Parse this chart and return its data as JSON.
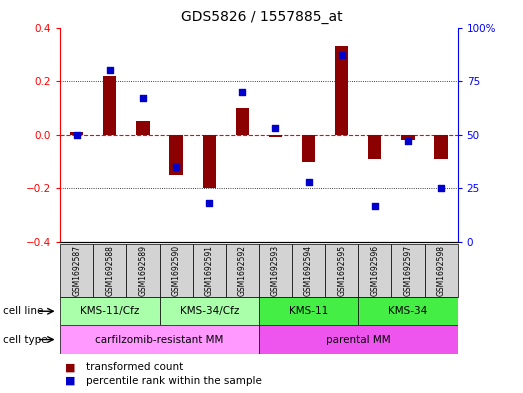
{
  "title": "GDS5826 / 1557885_at",
  "samples": [
    "GSM1692587",
    "GSM1692588",
    "GSM1692589",
    "GSM1692590",
    "GSM1692591",
    "GSM1692592",
    "GSM1692593",
    "GSM1692594",
    "GSM1692595",
    "GSM1692596",
    "GSM1692597",
    "GSM1692598"
  ],
  "transformed_count": [
    0.01,
    0.22,
    0.05,
    -0.15,
    -0.2,
    0.1,
    -0.01,
    -0.1,
    0.33,
    -0.09,
    -0.02,
    -0.09
  ],
  "percentile_rank": [
    50,
    80,
    67,
    35,
    18,
    70,
    53,
    28,
    87,
    17,
    47,
    25
  ],
  "bar_color": "#8B0000",
  "dot_color": "#0000CD",
  "cell_line_groups": [
    {
      "label": "KMS-11/Cfz",
      "start": 0,
      "end": 3,
      "color": "#AAFFAA"
    },
    {
      "label": "KMS-34/Cfz",
      "start": 3,
      "end": 6,
      "color": "#AAFFAA"
    },
    {
      "label": "KMS-11",
      "start": 6,
      "end": 9,
      "color": "#44EE44"
    },
    {
      "label": "KMS-34",
      "start": 9,
      "end": 12,
      "color": "#44EE44"
    }
  ],
  "cell_type_groups": [
    {
      "label": "carfilzomib-resistant MM",
      "start": 0,
      "end": 6,
      "color": "#FF99FF"
    },
    {
      "label": "parental MM",
      "start": 6,
      "end": 12,
      "color": "#EE55EE"
    }
  ],
  "ylim": [
    -0.4,
    0.4
  ],
  "y2lim": [
    0,
    100
  ],
  "yticks": [
    -0.4,
    -0.2,
    0.0,
    0.2,
    0.4
  ],
  "y2ticks": [
    0,
    25,
    50,
    75,
    100
  ],
  "legend_items": [
    {
      "color": "#8B0000",
      "label": "transformed count"
    },
    {
      "color": "#0000CD",
      "label": "percentile rank within the sample"
    }
  ]
}
